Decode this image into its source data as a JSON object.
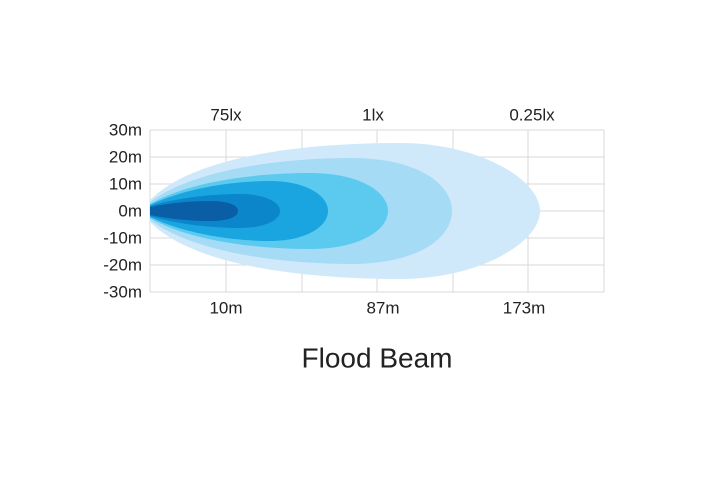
{
  "y_labels": [
    "30m",
    "20m",
    "10m",
    "0m",
    "-10m",
    "-20m",
    "-30m"
  ],
  "top_labels": [
    "75lx",
    "1lx",
    "0.25lx"
  ],
  "bottom_labels": [
    "10m",
    "87m",
    "173m"
  ],
  "title": "Flood Beam"
}
